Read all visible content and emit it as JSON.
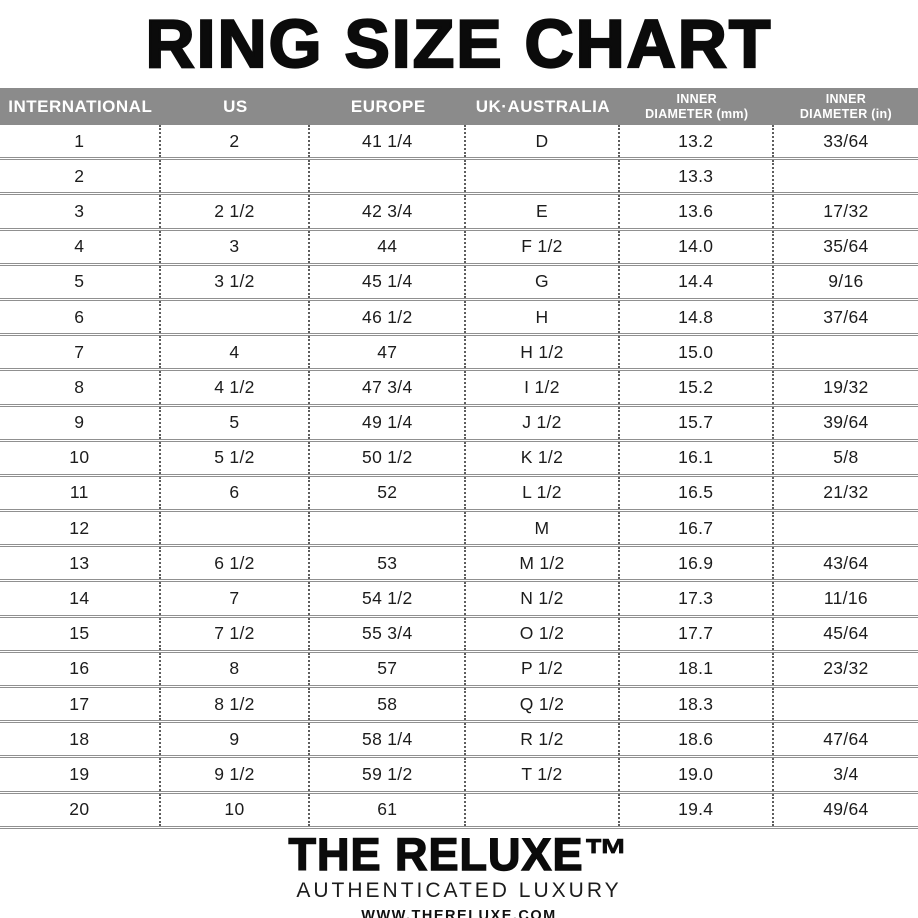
{
  "title": "RING SIZE CHART",
  "table": {
    "headers": [
      "INTERNATIONAL",
      "US",
      "EUROPE",
      "UK·AUSTRALIA",
      "INNER\nDIAMETER (mm)",
      "INNER\nDIAMETER (in)"
    ],
    "rows": [
      [
        "1",
        "2",
        "41 1/4",
        "D",
        "13.2",
        "33/64"
      ],
      [
        "2",
        "",
        "",
        "",
        "13.3",
        ""
      ],
      [
        "3",
        "2 1/2",
        "42 3/4",
        "E",
        "13.6",
        "17/32"
      ],
      [
        "4",
        "3",
        "44",
        "F 1/2",
        "14.0",
        "35/64"
      ],
      [
        "5",
        "3 1/2",
        "45 1/4",
        "G",
        "14.4",
        "9/16"
      ],
      [
        "6",
        "",
        "46 1/2",
        "H",
        "14.8",
        "37/64"
      ],
      [
        "7",
        "4",
        "47",
        "H 1/2",
        "15.0",
        ""
      ],
      [
        "8",
        "4 1/2",
        "47 3/4",
        "I 1/2",
        "15.2",
        "19/32"
      ],
      [
        "9",
        "5",
        "49 1/4",
        "J 1/2",
        "15.7",
        "39/64"
      ],
      [
        "10",
        "5 1/2",
        "50 1/2",
        "K 1/2",
        "16.1",
        "5/8"
      ],
      [
        "11",
        "6",
        "52",
        "L 1/2",
        "16.5",
        "21/32"
      ],
      [
        "12",
        "",
        "",
        "M",
        "16.7",
        ""
      ],
      [
        "13",
        "6 1/2",
        "53",
        "M 1/2",
        "16.9",
        "43/64"
      ],
      [
        "14",
        "7",
        "54 1/2",
        "N 1/2",
        "17.3",
        "11/16"
      ],
      [
        "15",
        "7 1/2",
        "55 3/4",
        "O 1/2",
        "17.7",
        "45/64"
      ],
      [
        "16",
        "8",
        "57",
        "P 1/2",
        "18.1",
        "23/32"
      ],
      [
        "17",
        "8 1/2",
        "58",
        "Q 1/2",
        "18.3",
        ""
      ],
      [
        "18",
        "9",
        "58 1/4",
        "R 1/2",
        "18.6",
        "47/64"
      ],
      [
        "19",
        "9 1/2",
        "59 1/2",
        "T 1/2",
        "19.0",
        "3/4"
      ],
      [
        "20",
        "10",
        "61",
        "",
        "19.4",
        "49/64"
      ]
    ]
  },
  "footer": {
    "brand": "THE RELUXE",
    "trademark": "™",
    "tagline": "AUTHENTICATED LUXURY",
    "website": "WWW.THERELUXE.COM"
  },
  "colors": {
    "header_bg": "#8b8b8b",
    "header_text": "#ffffff",
    "row_line": "#909090",
    "dot_line": "#5d5d5d",
    "text": "#1a1a1a"
  }
}
